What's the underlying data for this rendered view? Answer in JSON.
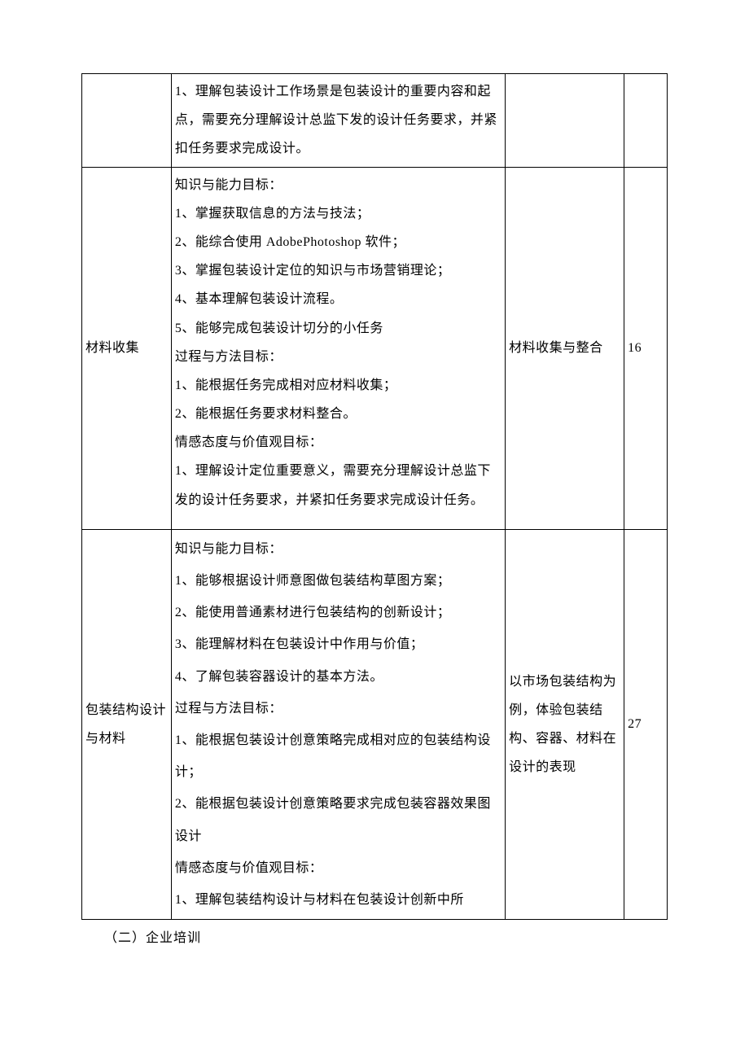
{
  "table": {
    "rows": [
      {
        "col1": "",
        "col2": "1、理解包装设计工作场景是包装设计的重要内容和起点，需要充分理解设计总监下发的设计任务要求，并紧扣任务要求完成设计。",
        "col3": "",
        "col4": ""
      },
      {
        "col1": "材料收集",
        "col2": "知识与能力目标：\n1、掌握获取信息的方法与技法；\n2、能综合使用 AdobePhotoshop 软件；\n3、掌握包装设计定位的知识与市场营销理论；\n4、基本理解包装设计流程。\n5、能够完成包装设计切分的小任务\n过程与方法目标：\n1、能根据任务完成相对应材料收集；\n2、能根据任务要求材料整合。\n情感态度与价值观目标：\n1、理解设计定位重要意义，需要充分理解设计总监下发的设计任务要求，并紧扣任务要求完成设计任务。",
        "col3": "材料收集与整合",
        "col4": "16"
      },
      {
        "col1": "包装结构设计与材料",
        "col2": "知识与能力目标：\n1、能够根据设计师意图做包装结构草图方案；\n2、能使用普通素材进行包装结构的创新设计；\n3、能理解材料在包装设计中作用与价值；\n4、了解包装容器设计的基本方法。\n过程与方法目标：\n1、能根据包装设计创意策略完成相对应的包装结构设计；\n2、能根据包装设计创意策略要求完成包装容器效果图设计\n情感态度与价值观目标：\n1、理解包装结构设计与材料在包装设计创新中所",
        "col3": "以市场包装结构为例，体验包装结构、容器、材料在设计的表现",
        "col4": "27"
      }
    ]
  },
  "footer": "（二）企业培训"
}
